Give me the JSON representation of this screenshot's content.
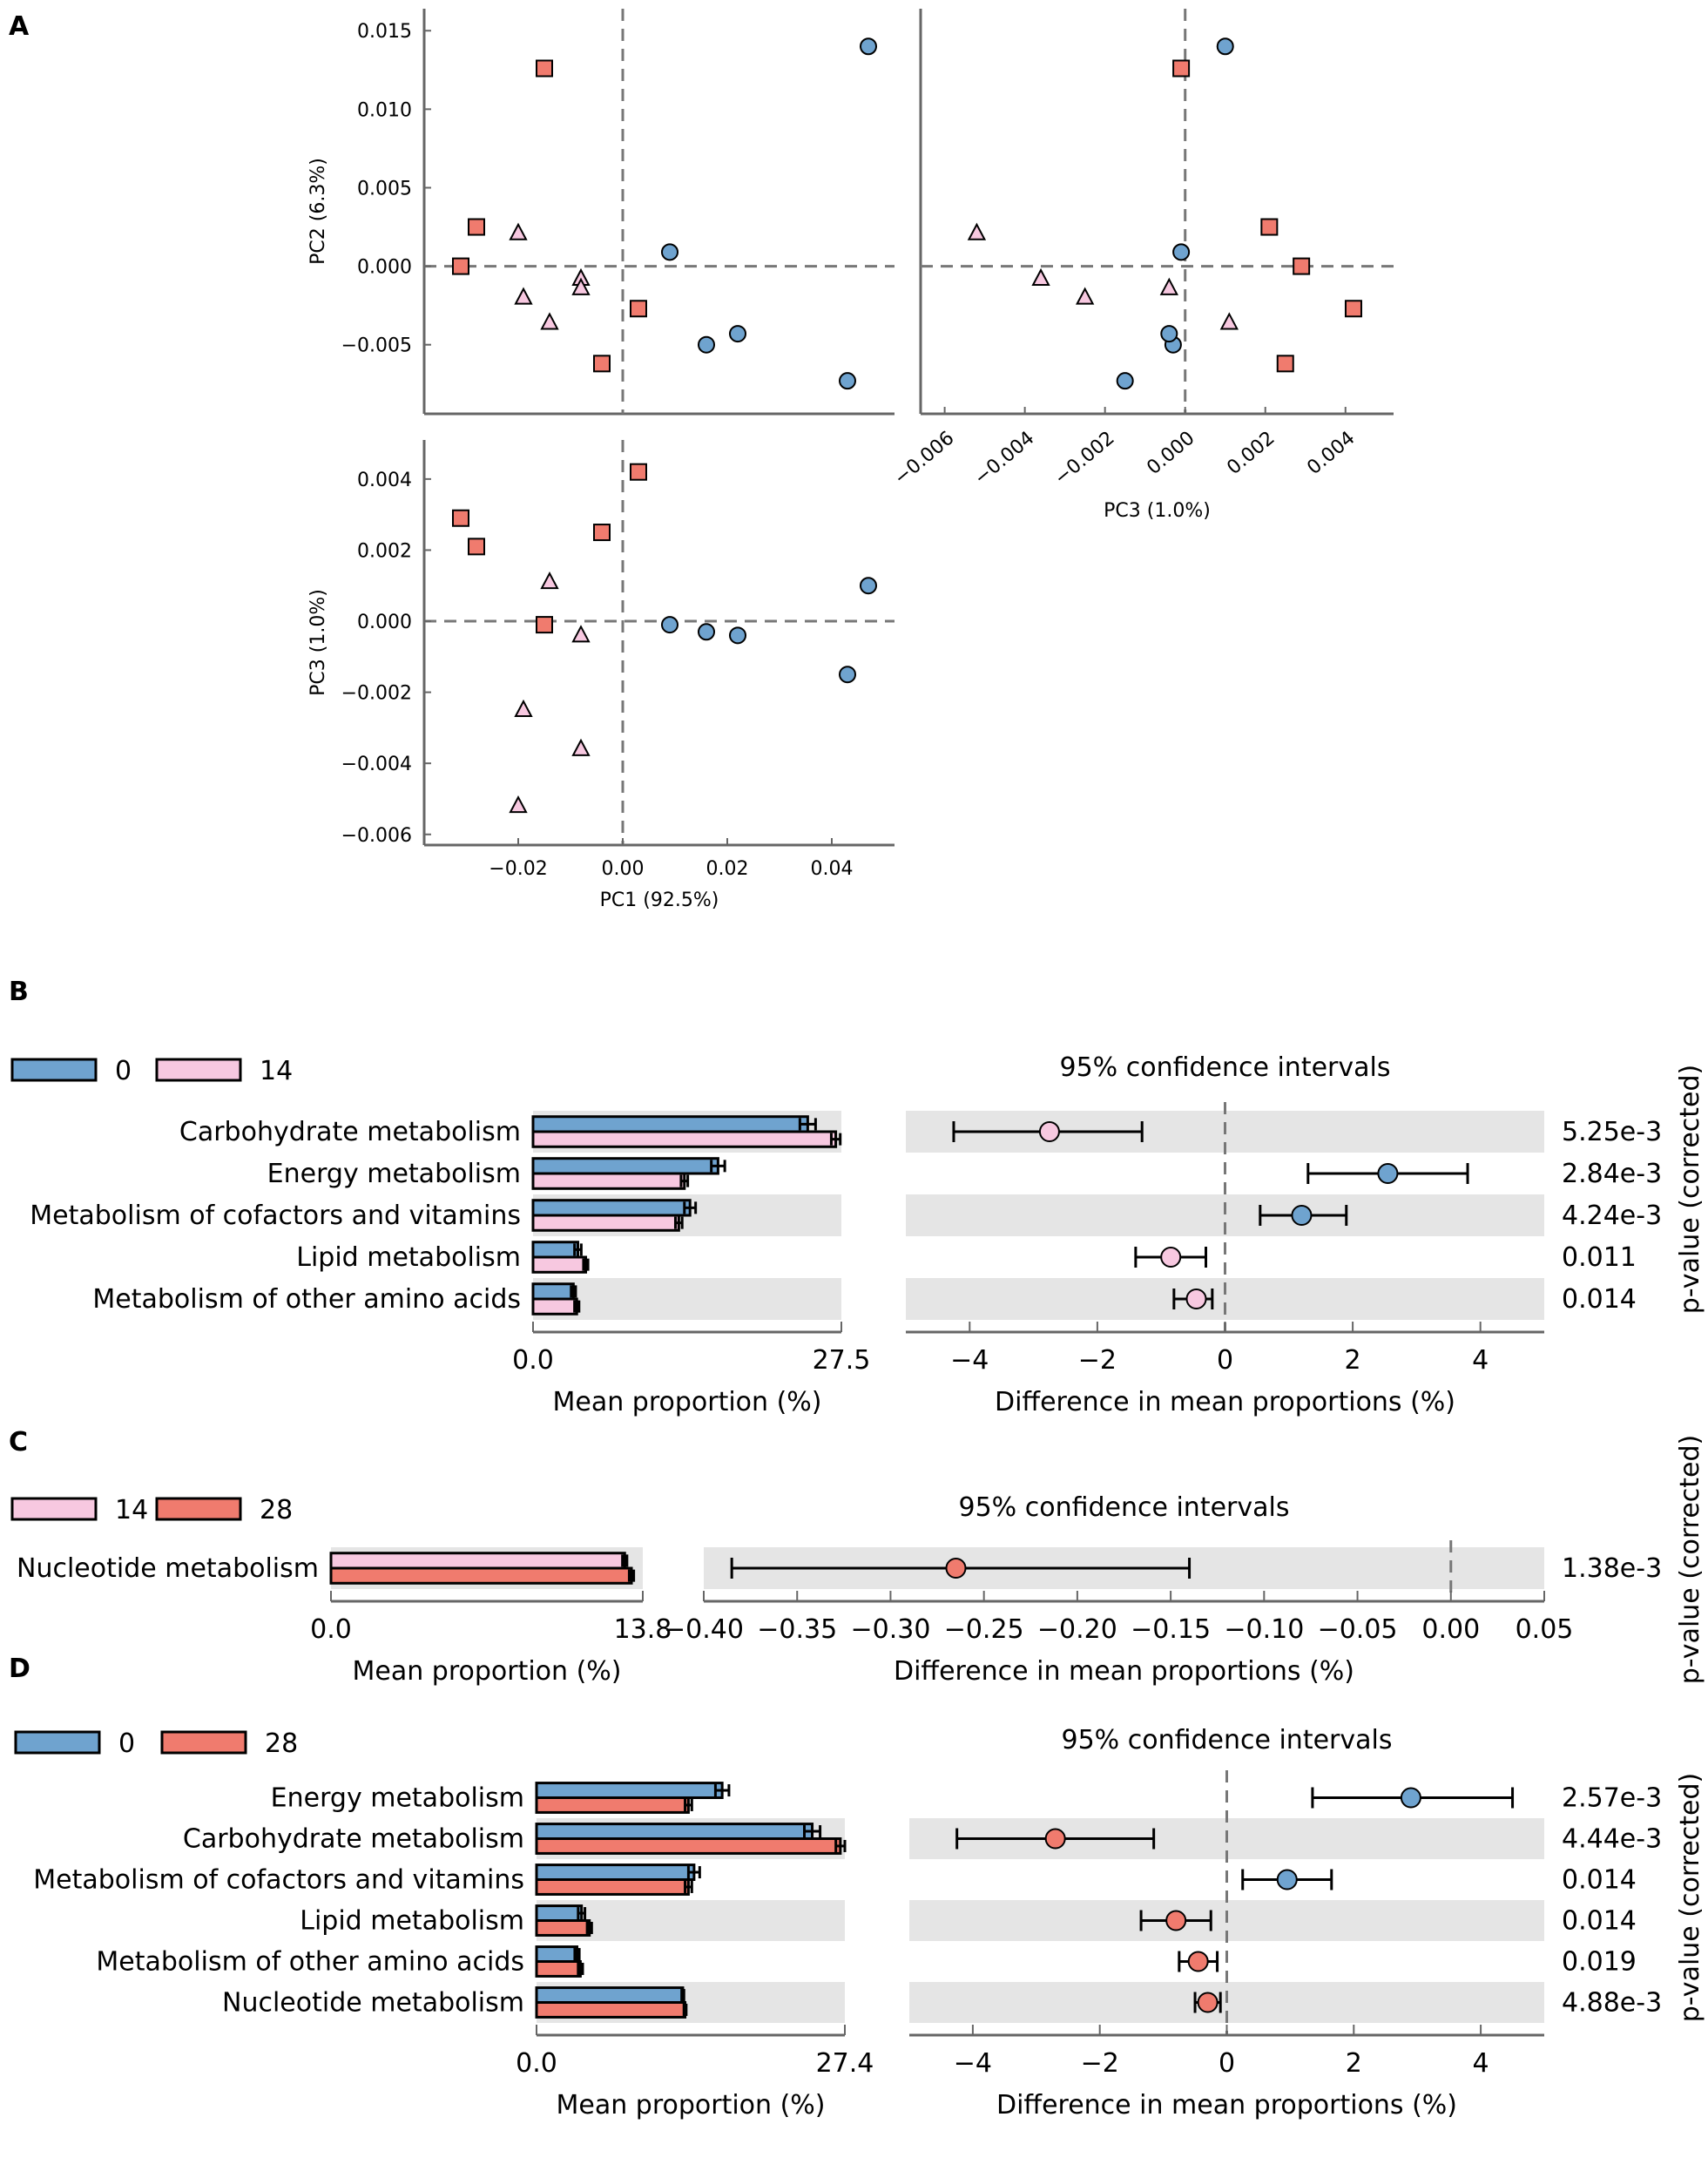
{
  "colors": {
    "day0": "#6fa3cf",
    "day14": "#f7c8e0",
    "day28": "#f07b6e",
    "band": "#e5e5e5"
  },
  "panel_labels": {
    "a": "A",
    "b": "B",
    "c": "C",
    "d": "D"
  },
  "chart_data": [
    {
      "type": "scatter",
      "panel": "A",
      "title": "",
      "groups": [
        {
          "name": "0",
          "marker": "circle"
        },
        {
          "name": "14",
          "marker": "triangle"
        },
        {
          "name": "28",
          "marker": "square"
        }
      ],
      "samples": [
        {
          "group": "0",
          "pc1": 0.047,
          "pc2": 0.014,
          "pc3": 0.001
        },
        {
          "group": "0",
          "pc1": 0.009,
          "pc2": 0.0009,
          "pc3": -0.0001
        },
        {
          "group": "0",
          "pc1": 0.016,
          "pc2": -0.005,
          "pc3": -0.0003
        },
        {
          "group": "0",
          "pc1": 0.022,
          "pc2": -0.0043,
          "pc3": -0.0004
        },
        {
          "group": "0",
          "pc1": 0.043,
          "pc2": -0.0073,
          "pc3": -0.0015
        },
        {
          "group": "14",
          "pc1": -0.02,
          "pc2": 0.0021,
          "pc3": -0.0052
        },
        {
          "group": "14",
          "pc1": -0.019,
          "pc2": -0.002,
          "pc3": -0.0025
        },
        {
          "group": "14",
          "pc1": -0.014,
          "pc2": -0.0036,
          "pc3": 0.0011
        },
        {
          "group": "14",
          "pc1": -0.008,
          "pc2": -0.0008,
          "pc3": -0.0036
        },
        {
          "group": "14",
          "pc1": -0.008,
          "pc2": -0.0014,
          "pc3": -0.0004
        },
        {
          "group": "28",
          "pc1": -0.015,
          "pc2": 0.0126,
          "pc3": -0.0001
        },
        {
          "group": "28",
          "pc1": -0.028,
          "pc2": 0.0025,
          "pc3": 0.0021
        },
        {
          "group": "28",
          "pc1": -0.031,
          "pc2": 0.0,
          "pc3": 0.0029
        },
        {
          "group": "28",
          "pc1": 0.003,
          "pc2": -0.0027,
          "pc3": 0.0042
        },
        {
          "group": "28",
          "pc1": -0.004,
          "pc2": -0.0062,
          "pc3": 0.0025
        }
      ],
      "subplots": [
        {
          "id": "pc1-pc2",
          "xkey": "pc1",
          "ykey": "pc2",
          "xlabel": "",
          "ylabel": "PC2 (6.3%)",
          "xlim": [
            -0.038,
            0.052
          ],
          "ylim": [
            -0.0094,
            0.0164
          ],
          "xticks": [],
          "yticks": [
            "0.015",
            "0.010",
            "0.005",
            "0.000",
            "−0.005"
          ]
        },
        {
          "id": "pc3-pc2",
          "xkey": "pc3",
          "ykey": "pc2",
          "xlabel": "PC3 (1.0%)",
          "ylabel": "",
          "xlim": [
            -0.0066,
            0.0052
          ],
          "ylim": [
            -0.0094,
            0.0164
          ],
          "xticks": [
            "−0.006",
            "−0.004",
            "−0.002",
            "0.000",
            "0.002",
            "0.004"
          ],
          "yticks": []
        },
        {
          "id": "pc1-pc3",
          "xkey": "pc1",
          "ykey": "pc3",
          "xlabel": "PC1 (92.5%)",
          "ylabel": "PC3 (1.0%)",
          "xlim": [
            -0.038,
            0.052
          ],
          "ylim": [
            -0.0063,
            0.0051
          ],
          "xticks": [
            "−0.02",
            "0.00",
            "0.02",
            "0.04"
          ],
          "yticks": [
            "0.004",
            "0.002",
            "0.000",
            "−0.002",
            "−0.004",
            "−0.006"
          ]
        }
      ]
    },
    {
      "type": "bar",
      "panel": "B",
      "legend": [
        {
          "name": "0",
          "color_key": "day0"
        },
        {
          "name": "14",
          "color_key": "day14"
        }
      ],
      "categories": [
        "Carbohydrate metabolism",
        "Energy metabolism",
        "Metabolism of cofactors and vitamins",
        "Lipid metabolism",
        "Metabolism of other amino acids"
      ],
      "series": [
        {
          "name": "0",
          "values": [
            24.5,
            16.5,
            14.0,
            4.0,
            3.6
          ],
          "errors": [
            0.7,
            0.6,
            0.5,
            0.3,
            0.2
          ]
        },
        {
          "name": "14",
          "values": [
            27.0,
            13.5,
            13.0,
            4.7,
            3.9
          ],
          "errors": [
            0.4,
            0.3,
            0.3,
            0.2,
            0.2
          ]
        }
      ],
      "xlabel": "Mean proportion (%)",
      "xlim": [
        0,
        27.5
      ],
      "xtick_labels": [
        "0.0",
        "27.5"
      ],
      "ci_title": "95% confidence intervals",
      "ci_xlabel": "Difference in mean proportions (%)",
      "ci_xlim": [
        -5,
        5
      ],
      "ci_ticks": [
        "−4",
        "−2",
        "0",
        "2",
        "4"
      ],
      "differences": [
        -2.75,
        2.55,
        1.2,
        -0.85,
        -0.45
      ],
      "ci_low": [
        -4.25,
        1.3,
        0.55,
        -1.4,
        -0.8
      ],
      "ci_high": [
        -1.3,
        3.8,
        1.9,
        -0.3,
        -0.2
      ],
      "favored": [
        "14",
        "0",
        "0",
        "14",
        "14"
      ],
      "p_values": [
        "5.25e-3",
        "2.84e-3",
        "4.24e-3",
        "0.011",
        "0.014"
      ],
      "p_label": "p-value (corrected)"
    },
    {
      "type": "bar",
      "panel": "C",
      "legend": [
        {
          "name": "14",
          "color_key": "day14"
        },
        {
          "name": "28",
          "color_key": "day28"
        }
      ],
      "categories": [
        "Nucleotide metabolism"
      ],
      "series": [
        {
          "name": "14",
          "values": [
            13.0
          ],
          "errors": [
            0.1
          ]
        },
        {
          "name": "28",
          "values": [
            13.3
          ],
          "errors": [
            0.1
          ]
        }
      ],
      "xlabel": "Mean proportion (%)",
      "xlim": [
        0,
        13.8
      ],
      "xtick_labels": [
        "0.0",
        "13.8"
      ],
      "ci_title": "95% confidence intervals",
      "ci_xlabel": "Difference in mean proportions (%)",
      "ci_xlim": [
        -0.4,
        0.05
      ],
      "ci_ticks": [
        "−0.40",
        "−0.35",
        "−0.30",
        "−0.25",
        "−0.20",
        "−0.15",
        "−0.10",
        "−0.05",
        "0.00",
        "0.05"
      ],
      "differences": [
        -0.265
      ],
      "ci_low": [
        -0.385
      ],
      "ci_high": [
        -0.14
      ],
      "favored": [
        "28"
      ],
      "p_values": [
        "1.38e-3"
      ],
      "p_label": "p-value (corrected)"
    },
    {
      "type": "bar",
      "panel": "D",
      "legend": [
        {
          "name": "0",
          "color_key": "day0"
        },
        {
          "name": "28",
          "color_key": "day28"
        }
      ],
      "categories": [
        "Energy metabolism",
        "Carbohydrate metabolism",
        "Metabolism of cofactors and vitamins",
        "Lipid metabolism",
        "Metabolism of other amino acids",
        "Nucleotide metabolism"
      ],
      "series": [
        {
          "name": "0",
          "values": [
            16.5,
            24.5,
            14.0,
            4.0,
            3.6,
            13.0
          ],
          "errors": [
            0.6,
            0.7,
            0.5,
            0.3,
            0.2,
            0.1
          ]
        },
        {
          "name": "28",
          "values": [
            13.5,
            27.0,
            13.5,
            4.7,
            3.9,
            13.2
          ],
          "errors": [
            0.3,
            0.4,
            0.3,
            0.2,
            0.2,
            0.1
          ]
        }
      ],
      "xlabel": "Mean proportion (%)",
      "xlim": [
        0,
        27.4
      ],
      "xtick_labels": [
        "0.0",
        "27.4"
      ],
      "ci_title": "95% confidence intervals",
      "ci_xlabel": "Difference in mean proportions (%)",
      "ci_xlim": [
        -5,
        5
      ],
      "ci_ticks": [
        "−4",
        "−2",
        "0",
        "2",
        "4"
      ],
      "differences": [
        2.9,
        -2.7,
        0.95,
        -0.8,
        -0.45,
        -0.3
      ],
      "ci_low": [
        1.35,
        -4.25,
        0.25,
        -1.35,
        -0.75,
        -0.5
      ],
      "ci_high": [
        4.5,
        -1.15,
        1.65,
        -0.25,
        -0.15,
        -0.1
      ],
      "favored": [
        "0",
        "28",
        "0",
        "28",
        "28",
        "28"
      ],
      "p_values": [
        "2.57e-3",
        "4.44e-3",
        "0.014",
        "0.014",
        "0.019",
        "4.88e-3"
      ],
      "p_label": "p-value (corrected)"
    }
  ]
}
